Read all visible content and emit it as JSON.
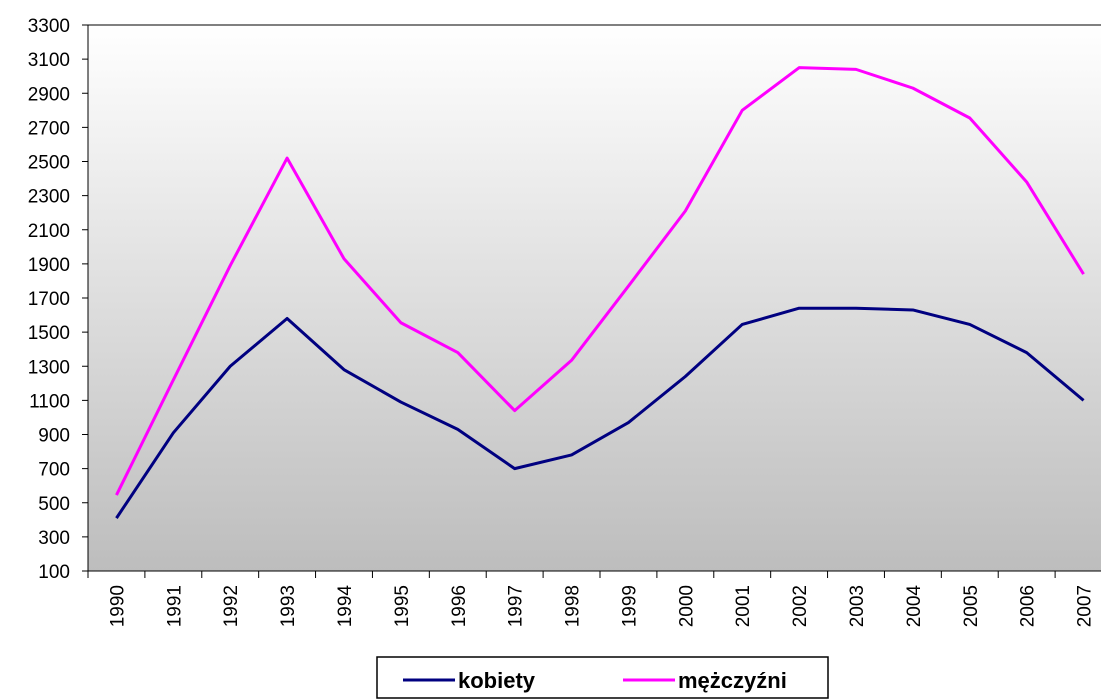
{
  "chart_data": {
    "type": "line",
    "categories": [
      "1990",
      "1991",
      "1992",
      "1993",
      "1994",
      "1995",
      "1996",
      "1997",
      "1998",
      "1999",
      "2000",
      "2001",
      "2002",
      "2003",
      "2004",
      "2005",
      "2006",
      "2007"
    ],
    "series": [
      {
        "name": "kobiety",
        "color": "#000080",
        "values": [
          410,
          910,
          1300,
          1580,
          1280,
          1090,
          930,
          700,
          780,
          970,
          1240,
          1545,
          1640,
          1640,
          1630,
          1545,
          1380,
          1100
        ]
      },
      {
        "name": "mężczyźni",
        "color": "#ff00ff",
        "values": [
          545,
          1220,
          1890,
          2520,
          1930,
          1555,
          1380,
          1040,
          1335,
          1770,
          2210,
          2800,
          3050,
          3040,
          2930,
          2755,
          2380,
          1840
        ]
      }
    ],
    "ylim": [
      100,
      3300
    ],
    "yticks": [
      100,
      300,
      500,
      700,
      900,
      1100,
      1300,
      1500,
      1700,
      1900,
      2100,
      2300,
      2500,
      2700,
      2900,
      3100,
      3300
    ],
    "legend": "bottom"
  }
}
